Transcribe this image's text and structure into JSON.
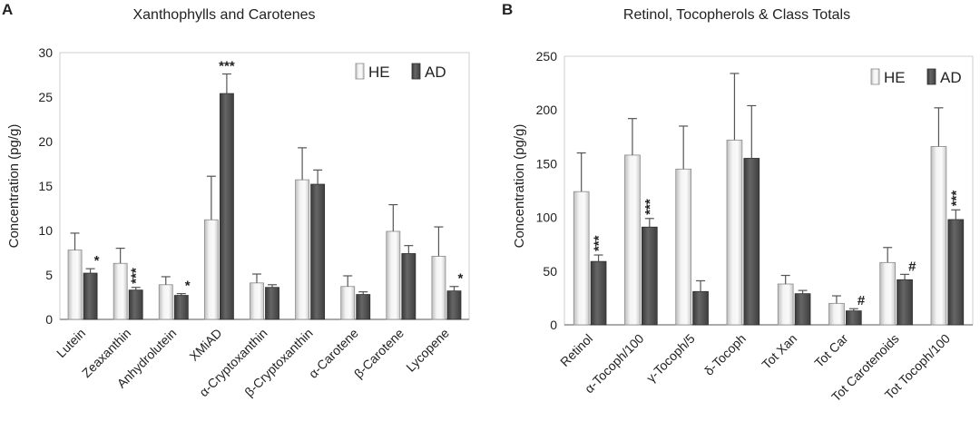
{
  "chart_data": [
    {
      "panel": "A",
      "type": "bar",
      "title": "Xanthophylls and Carotenes",
      "ylabel": "Concentration (pg/g)",
      "xlabel": "",
      "ylim": [
        0,
        30
      ],
      "yticks": [
        0,
        5,
        10,
        15,
        20,
        25,
        30
      ],
      "categories": [
        "Lutein",
        "Zeaxanthin",
        "Anhydrolutein",
        "XMiAD",
        "α-Cryptoxanthin",
        "β-Cryptoxanthin",
        "α-Carotene",
        "β-Carotene",
        "Lycopene"
      ],
      "series": [
        {
          "name": "HE",
          "color": "#e8e8e8",
          "values": [
            7.8,
            6.3,
            3.9,
            11.2,
            4.1,
            15.7,
            3.7,
            9.9,
            7.1
          ],
          "errors": [
            1.9,
            1.7,
            0.9,
            4.9,
            1.0,
            3.6,
            1.2,
            3.0,
            3.3
          ]
        },
        {
          "name": "AD",
          "color": "#555555",
          "values": [
            5.2,
            3.3,
            2.7,
            25.4,
            3.6,
            15.2,
            2.8,
            7.4,
            3.2
          ],
          "errors": [
            0.5,
            0.3,
            0.2,
            2.2,
            0.3,
            1.6,
            0.3,
            0.9,
            0.5
          ]
        }
      ],
      "annotations": [
        {
          "category": 0,
          "series": 1,
          "text": "*",
          "vertical": false
        },
        {
          "category": 1,
          "series": 1,
          "text": "***",
          "vertical": true
        },
        {
          "category": 2,
          "series": 1,
          "text": "*",
          "vertical": false
        },
        {
          "category": 3,
          "series": 1,
          "text": "***",
          "vertical": false
        },
        {
          "category": 8,
          "series": 1,
          "text": "*",
          "vertical": false
        }
      ],
      "legend": [
        "HE",
        "AD"
      ]
    },
    {
      "panel": "B",
      "type": "bar",
      "title": "Retinol, Tocopherols & Class Totals",
      "ylabel": "Concentration (pg/g)",
      "xlabel": "",
      "ylim": [
        0,
        250
      ],
      "yticks": [
        0,
        50,
        100,
        150,
        200,
        250
      ],
      "categories": [
        "Retinol",
        "α-Tocoph/100",
        "γ-Tocoph/5",
        "δ-Tocoph",
        "Tot Xan",
        "Tot Car",
        "Tot Carotenoids",
        "Tot Tocoph/100"
      ],
      "series": [
        {
          "name": "HE",
          "color": "#e8e8e8",
          "values": [
            124,
            158,
            145,
            172,
            38,
            20,
            58,
            166
          ],
          "errors": [
            36,
            34,
            40,
            62,
            8,
            7,
            14,
            36
          ]
        },
        {
          "name": "AD",
          "color": "#555555",
          "values": [
            59,
            91,
            31,
            155,
            29,
            13,
            42,
            98
          ],
          "errors": [
            6,
            8,
            10,
            49,
            3,
            2,
            5,
            9
          ]
        }
      ],
      "annotations": [
        {
          "category": 0,
          "series": 1,
          "text": "***",
          "vertical": true
        },
        {
          "category": 1,
          "series": 1,
          "text": "***",
          "vertical": true
        },
        {
          "category": 5,
          "series": 1,
          "text": "#",
          "vertical": false
        },
        {
          "category": 6,
          "series": 1,
          "text": "#",
          "vertical": false
        },
        {
          "category": 7,
          "series": 1,
          "text": "***",
          "vertical": true
        }
      ],
      "legend": [
        "HE",
        "AD"
      ]
    }
  ]
}
